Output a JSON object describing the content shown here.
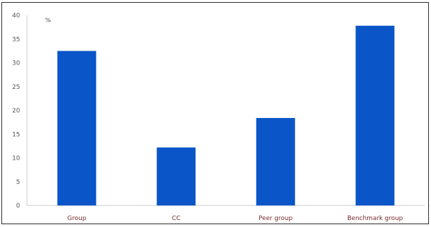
{
  "chart_data": {
    "type": "bar",
    "unit_label": "%",
    "categories": [
      "Group",
      "CC",
      "Peer group",
      "Benchmark group"
    ],
    "values": [
      32.5,
      12.2,
      18.4,
      37.8
    ],
    "ylim": [
      0,
      40
    ],
    "yticks": [
      0,
      5,
      10,
      15,
      20,
      25,
      30,
      35,
      40
    ],
    "grid": false,
    "bar_color": "#0a56c8"
  }
}
